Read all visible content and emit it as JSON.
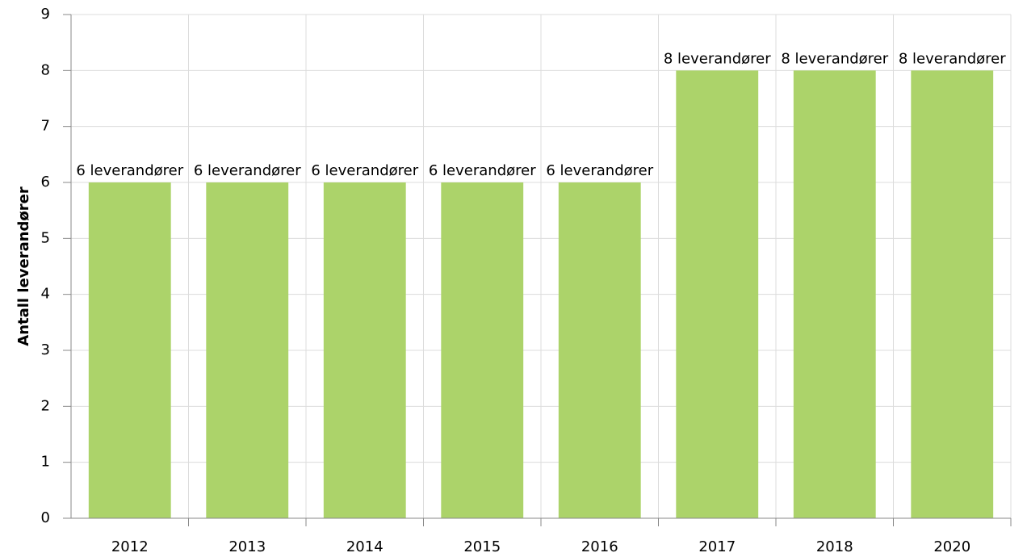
{
  "chart_data": {
    "type": "bar",
    "y_label": "Antall leverandører",
    "categories": [
      "2012",
      "2013",
      "2014",
      "2015",
      "2016",
      "2017",
      "2018",
      "2020"
    ],
    "values": [
      6,
      6,
      6,
      6,
      6,
      8,
      8,
      8
    ],
    "value_labels": [
      "6 leverandører",
      "6 leverandører",
      "6 leverandører",
      "6 leverandører",
      "6 leverandører",
      "8 leverandører",
      "8 leverandører",
      "8 leverandører"
    ],
    "color": "#acd36a",
    "ylim": [
      0,
      9
    ],
    "yticks": [
      0,
      1,
      2,
      3,
      4,
      5,
      6,
      7,
      8,
      9
    ],
    "grid": true
  }
}
